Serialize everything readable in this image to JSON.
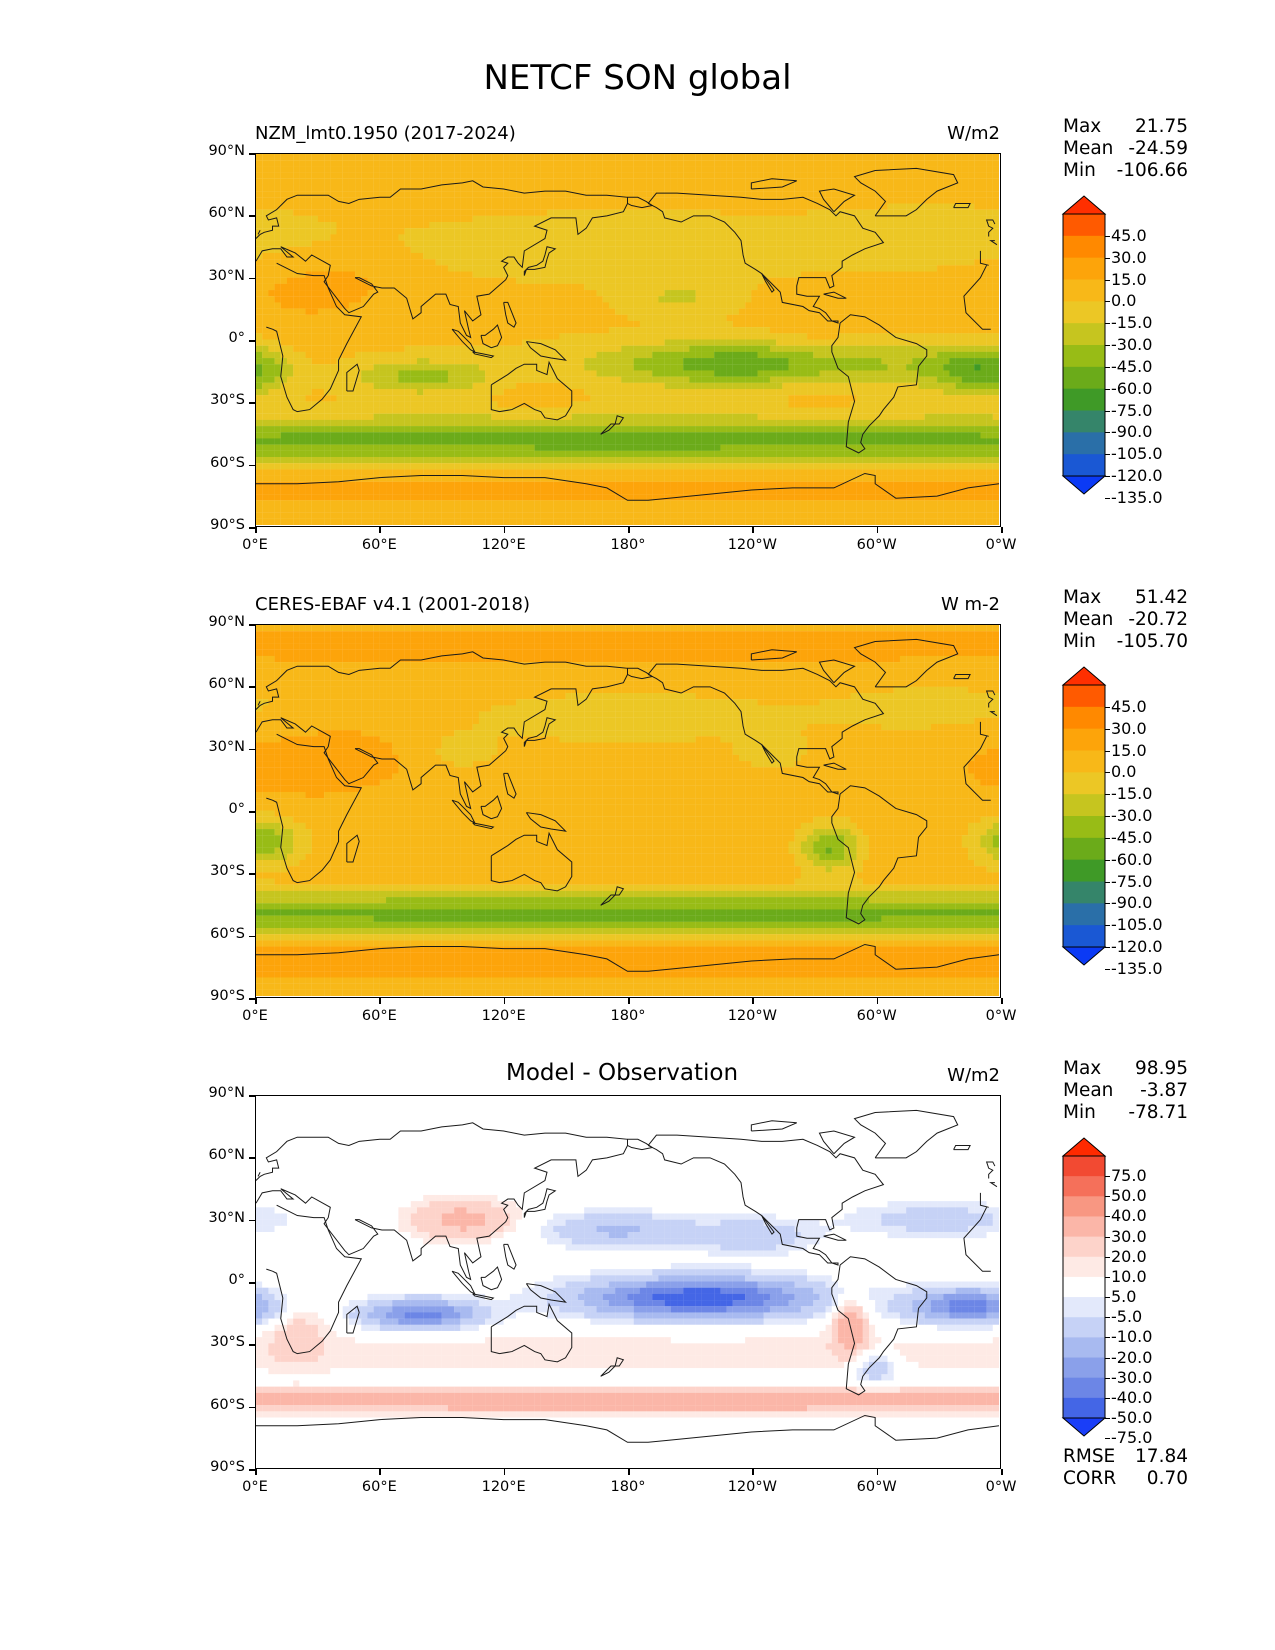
{
  "title": "NETCF SON global",
  "x_ticks": [
    "0°E",
    "60°E",
    "120°E",
    "180°",
    "120°W",
    "60°W",
    "0°W"
  ],
  "y_ticks": [
    "90°N",
    "60°N",
    "30°N",
    "0°",
    "30°S",
    "60°S",
    "90°S"
  ],
  "chart_data": [
    {
      "type": "heatmap",
      "title": "NZM_lmt0.1950 (2017-2024)",
      "units": "W/m2",
      "stats": {
        "max_label": "Max",
        "max": "21.75",
        "mean_label": "Mean",
        "mean": "-24.59",
        "min_label": "Min",
        "min": "-106.66"
      },
      "colorbar": {
        "labels": [
          "45.0",
          "30.0",
          "15.0",
          "0.0",
          "-15.0",
          "-30.0",
          "-45.0",
          "-60.0",
          "-75.0",
          "-90.0",
          "-105.0",
          "-120.0",
          "-135.0"
        ],
        "colors": [
          "#ff2f00",
          "#ff5a00",
          "#ff8900",
          "#fda40a",
          "#f8b818",
          "#ecc725",
          "#c6c51f",
          "#98bc16",
          "#6bab1a",
          "#3f9a27",
          "#35856a",
          "#2a6fa8",
          "#1a58d4",
          "#0b3af5"
        ]
      }
    },
    {
      "type": "heatmap",
      "title": "CERES-EBAF v4.1 (2001-2018)",
      "units": "W m-2",
      "stats": {
        "max_label": "Max",
        "max": "51.42",
        "mean_label": "Mean",
        "mean": "-20.72",
        "min_label": "Min",
        "min": "-105.70"
      },
      "colorbar": {
        "labels": [
          "45.0",
          "30.0",
          "15.0",
          "0.0",
          "-15.0",
          "-30.0",
          "-45.0",
          "-60.0",
          "-75.0",
          "-90.0",
          "-105.0",
          "-120.0",
          "-135.0"
        ],
        "colors": [
          "#ff2f00",
          "#ff5a00",
          "#ff8900",
          "#fda40a",
          "#f8b818",
          "#ecc725",
          "#c6c51f",
          "#98bc16",
          "#6bab1a",
          "#3f9a27",
          "#35856a",
          "#2a6fa8",
          "#1a58d4",
          "#0b3af5"
        ]
      }
    },
    {
      "type": "heatmap",
      "title": "Model - Observation",
      "units": "W/m2",
      "stats": {
        "max_label": "Max",
        "max": "98.95",
        "mean_label": "Mean",
        "mean": "-3.87",
        "min_label": "Min",
        "min": "-78.71"
      },
      "colorbar": {
        "labels": [
          "75.0",
          "50.0",
          "40.0",
          "30.0",
          "20.0",
          "10.0",
          "5.0",
          "-5.0",
          "-10.0",
          "-20.0",
          "-30.0",
          "-40.0",
          "-50.0",
          "-75.0"
        ],
        "colors": [
          "#ff2a00",
          "#f24a32",
          "#f5705a",
          "#f89782",
          "#fbb6a8",
          "#fdd3ca",
          "#feeae5",
          "#ffffff",
          "#e3e9fb",
          "#c6d2f6",
          "#a8baf0",
          "#8aa0ea",
          "#6c86e6",
          "#4466e6",
          "#1a3ef8"
        ]
      },
      "rmse_label": "RMSE",
      "rmse": "17.84",
      "corr_label": "CORR",
      "corr": "0.70"
    }
  ]
}
